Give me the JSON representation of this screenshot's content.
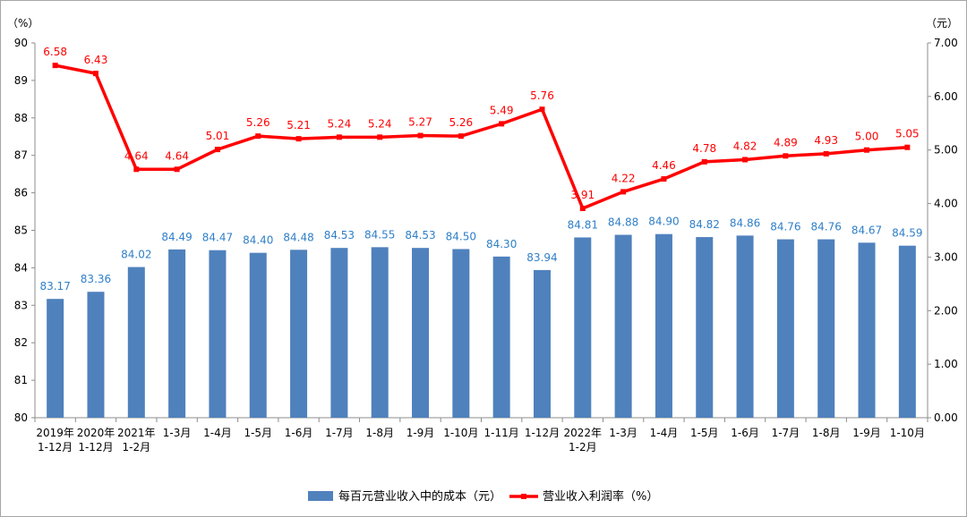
{
  "chart_data": {
    "type": "bar",
    "categories": [
      [
        "2019年",
        "1-12月"
      ],
      [
        "2020年",
        "1-12月"
      ],
      [
        "2021年",
        "1-2月"
      ],
      [
        "1-3月"
      ],
      [
        "1-4月"
      ],
      [
        "1-5月"
      ],
      [
        "1-6月"
      ],
      [
        "1-7月"
      ],
      [
        "1-8月"
      ],
      [
        "1-9月"
      ],
      [
        "1-10月"
      ],
      [
        "1-11月"
      ],
      [
        "1-12月"
      ],
      [
        "2022年",
        "1-2月"
      ],
      [
        "1-3月"
      ],
      [
        "1-4月"
      ],
      [
        "1-5月"
      ],
      [
        "1-6月"
      ],
      [
        "1-7月"
      ],
      [
        "1-8月"
      ],
      [
        "1-9月"
      ],
      [
        "1-10月"
      ]
    ],
    "series": [
      {
        "name": "每百元营业收入中的成本（元）",
        "type": "bar",
        "axis": "left",
        "color": "#4f81bd",
        "label_color": "#2f7fc8",
        "values": [
          83.17,
          83.36,
          84.02,
          84.49,
          84.47,
          84.4,
          84.48,
          84.53,
          84.55,
          84.53,
          84.5,
          84.3,
          83.94,
          84.81,
          84.88,
          84.9,
          84.82,
          84.86,
          84.76,
          84.76,
          84.67,
          84.59
        ],
        "labels": [
          "83.17",
          "83.36",
          "84.02",
          "84.49",
          "84.47",
          "84.40",
          "84.48",
          "84.53",
          "84.55",
          "84.53",
          "84.50",
          "84.30",
          "83.94",
          "84.81",
          "84.88",
          "84.90",
          "84.82",
          "84.86",
          "84.76",
          "84.76",
          "84.67",
          "84.59"
        ]
      },
      {
        "name": "营业收入利润率（%）",
        "type": "line",
        "axis": "right",
        "color": "#ff0000",
        "values": [
          6.58,
          6.43,
          4.64,
          4.64,
          5.01,
          5.26,
          5.21,
          5.24,
          5.24,
          5.27,
          5.26,
          5.49,
          5.76,
          3.91,
          4.22,
          4.46,
          4.78,
          4.82,
          4.89,
          4.93,
          5.0,
          5.05
        ],
        "labels": [
          "6.58",
          "6.43",
          "4.64",
          "4.64",
          "5.01",
          "5.26",
          "5.21",
          "5.24",
          "5.24",
          "5.27",
          "5.26",
          "5.49",
          "5.76",
          "3.91",
          "4.22",
          "4.46",
          "4.78",
          "4.82",
          "4.89",
          "4.93",
          "5.00",
          "5.05"
        ]
      }
    ],
    "left_axis": {
      "unit": "（%）",
      "ylim": [
        80,
        90
      ],
      "ticks": [
        "80",
        "81",
        "82",
        "83",
        "84",
        "85",
        "86",
        "87",
        "88",
        "89",
        "90"
      ]
    },
    "right_axis": {
      "unit": "（元）",
      "ylim": [
        0,
        7
      ],
      "ticks": [
        "0.00",
        "1.00",
        "2.00",
        "3.00",
        "4.00",
        "5.00",
        "6.00",
        "7.00"
      ]
    },
    "grid": false,
    "legend_position": "bottom"
  }
}
